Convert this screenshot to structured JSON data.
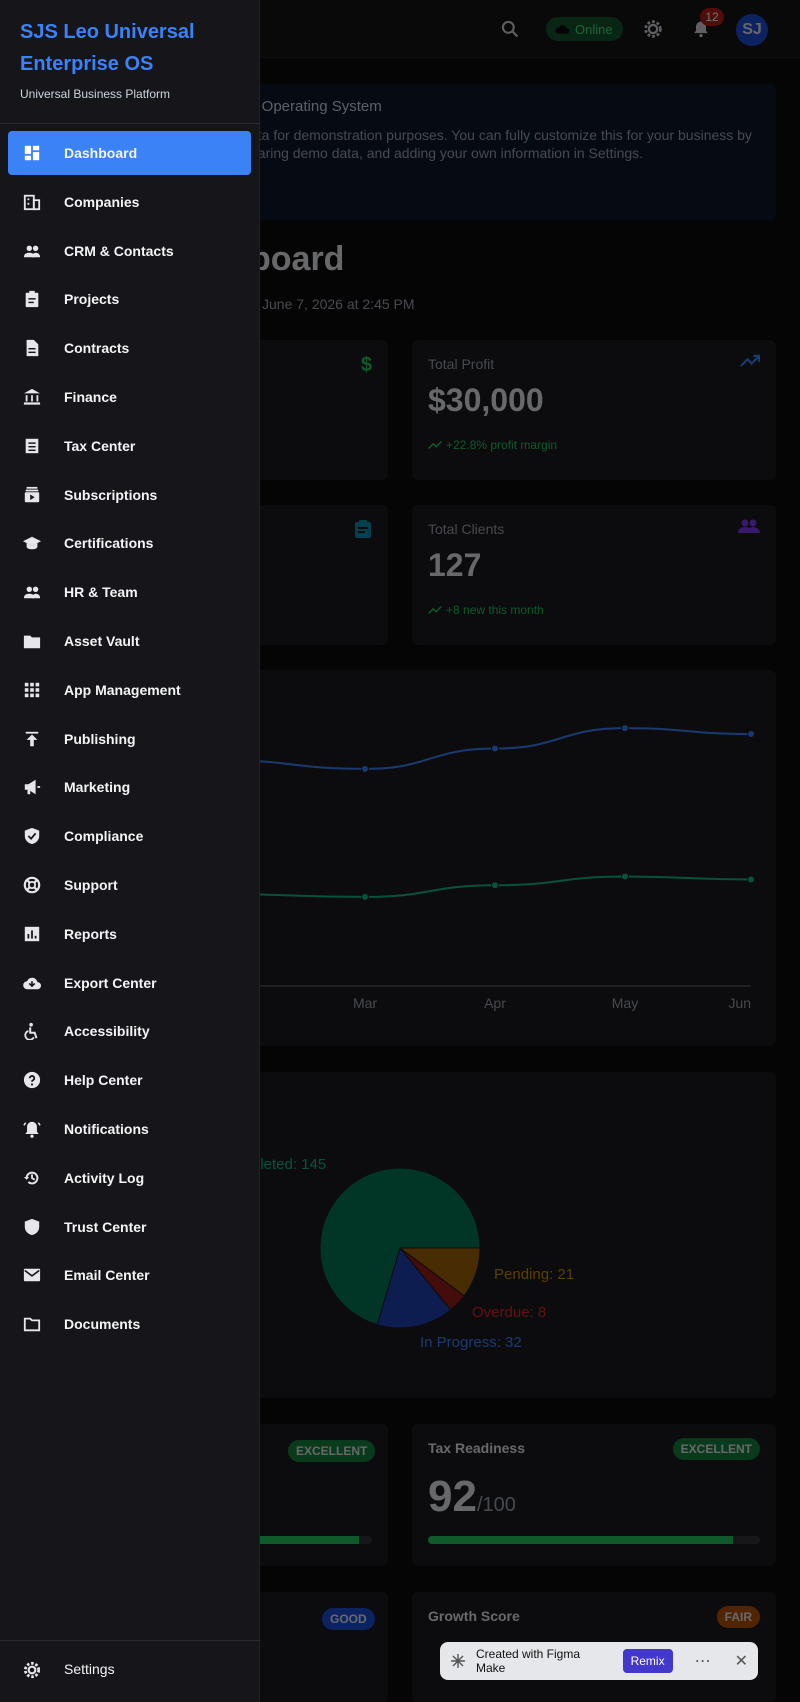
{
  "topbar": {
    "status": "Online",
    "notification_count": "12",
    "avatar_initials": "SJ"
  },
  "banner": {
    "title": "s Operating System",
    "text": "ata for demonstration purposes. You can fully customize this for your business by earing demo data, and adding your own information in Settings."
  },
  "dashboard": {
    "title": "board",
    "updated": "June 7, 2026 at 2:45 PM"
  },
  "cards": {
    "total_profit": {
      "label": "Total Profit",
      "value": "$30,000",
      "sub": "+22.8% profit margin"
    },
    "total_clients": {
      "label": "Total Clients",
      "value": "127",
      "sub": "+8 new this month"
    },
    "tax_readiness": {
      "label": "Tax Readiness",
      "badge": "EXCELLENT",
      "value": "92",
      "suffix": "/100",
      "progress": 0.92
    },
    "growth_score": {
      "label": "Growth Score",
      "badge": "FAIR"
    },
    "left_partial_1": {
      "badge": "EXCELLENT",
      "progress": 0.9
    },
    "left_partial_2": {
      "badge": "GOOD"
    }
  },
  "chart_data": [
    {
      "type": "line",
      "x": [
        "Mar",
        "Apr",
        "May",
        "Jun"
      ],
      "series": [
        {
          "color": "#3b82f6",
          "values": [
            76,
            83,
            90,
            88
          ]
        },
        {
          "color": "#10b981",
          "values": [
            32,
            36,
            39,
            38
          ]
        }
      ],
      "ylim": [
        0,
        110
      ],
      "grid": false
    },
    {
      "type": "pie",
      "slices": [
        {
          "label": "Completed: 145",
          "value": 145,
          "color": "#047857"
        },
        {
          "label": "In Progress: 32",
          "value": 32,
          "color": "#1e40af"
        },
        {
          "label": "Overdue: 8",
          "value": 8,
          "color": "#991b1b"
        },
        {
          "label": "Pending: 21",
          "value": 21,
          "color": "#a16207"
        }
      ],
      "labels_visible": {
        "completed": "pleted: 145",
        "pending": "Pending: 21",
        "overdue": "Overdue: 8",
        "progress": "In Progress: 32"
      }
    }
  ],
  "figma": {
    "text": "Created with Figma Make",
    "remix": "Remix"
  },
  "drawer": {
    "brand": "SJS Leo Universal Enterprise OS",
    "subtitle": "Universal Business Platform",
    "items": [
      {
        "label": "Dashboard",
        "icon": "dashboard-icon"
      },
      {
        "label": "Companies",
        "icon": "building-icon"
      },
      {
        "label": "CRM & Contacts",
        "icon": "people-icon"
      },
      {
        "label": "Projects",
        "icon": "clipboard-icon"
      },
      {
        "label": "Contracts",
        "icon": "document-icon"
      },
      {
        "label": "Finance",
        "icon": "bank-icon"
      },
      {
        "label": "Tax Center",
        "icon": "receipt-icon"
      },
      {
        "label": "Subscriptions",
        "icon": "subscriptions-icon"
      },
      {
        "label": "Certifications",
        "icon": "graduation-cap-icon"
      },
      {
        "label": "HR & Team",
        "icon": "team-icon"
      },
      {
        "label": "Asset Vault",
        "icon": "folder-icon"
      },
      {
        "label": "App Management",
        "icon": "apps-grid-icon"
      },
      {
        "label": "Publishing",
        "icon": "publish-icon"
      },
      {
        "label": "Marketing",
        "icon": "megaphone-icon"
      },
      {
        "label": "Compliance",
        "icon": "shield-check-icon"
      },
      {
        "label": "Support",
        "icon": "lifebuoy-icon"
      },
      {
        "label": "Reports",
        "icon": "bar-chart-icon"
      },
      {
        "label": "Export Center",
        "icon": "cloud-download-icon"
      },
      {
        "label": "Accessibility",
        "icon": "accessibility-icon"
      },
      {
        "label": "Help Center",
        "icon": "help-icon"
      },
      {
        "label": "Notifications",
        "icon": "bell-icon"
      },
      {
        "label": "Activity Log",
        "icon": "history-icon"
      },
      {
        "label": "Trust Center",
        "icon": "shield-icon"
      },
      {
        "label": "Email Center",
        "icon": "mail-icon"
      },
      {
        "label": "Documents",
        "icon": "folder-outline-icon"
      }
    ],
    "settings": "Settings"
  },
  "colors": {
    "accent": "#3b82f6",
    "success": "#22c55e",
    "drawer_bg": "#16161a"
  }
}
